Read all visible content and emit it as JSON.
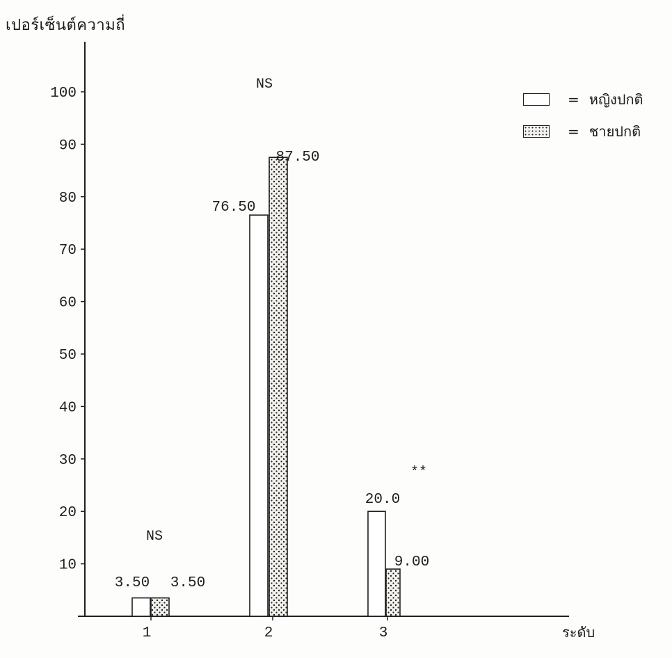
{
  "chart_data": {
    "type": "bar",
    "ylabel": "เปอร์เซ็นต์ความถี่",
    "xlabel": "ระดับ",
    "categories": [
      "1",
      "2",
      "3"
    ],
    "ylim": [
      0,
      100
    ],
    "yticks": [
      10,
      20,
      30,
      40,
      50,
      60,
      70,
      80,
      90,
      100
    ],
    "series": [
      {
        "name": "หญิงปกติ",
        "values": [
          3.5,
          76.5,
          20.0
        ],
        "labels": [
          "3.50",
          "76.50",
          "20.0"
        ],
        "pattern": "plain"
      },
      {
        "name": "ชายปกติ",
        "values": [
          3.5,
          87.5,
          9.0
        ],
        "labels": [
          "3.50",
          "87.50",
          "9.00"
        ],
        "pattern": "dotted"
      }
    ],
    "annotations": [
      "NS",
      "NS",
      "**"
    ],
    "legend": {
      "position": "top-right",
      "entries": [
        {
          "symbol": "=",
          "label": "หญิงปกติ"
        },
        {
          "symbol": "=",
          "label": "ชายปกติ"
        }
      ]
    },
    "grid": false
  },
  "colors": {
    "ink": "#1f1f1f",
    "paper": "#fdfdfb"
  }
}
